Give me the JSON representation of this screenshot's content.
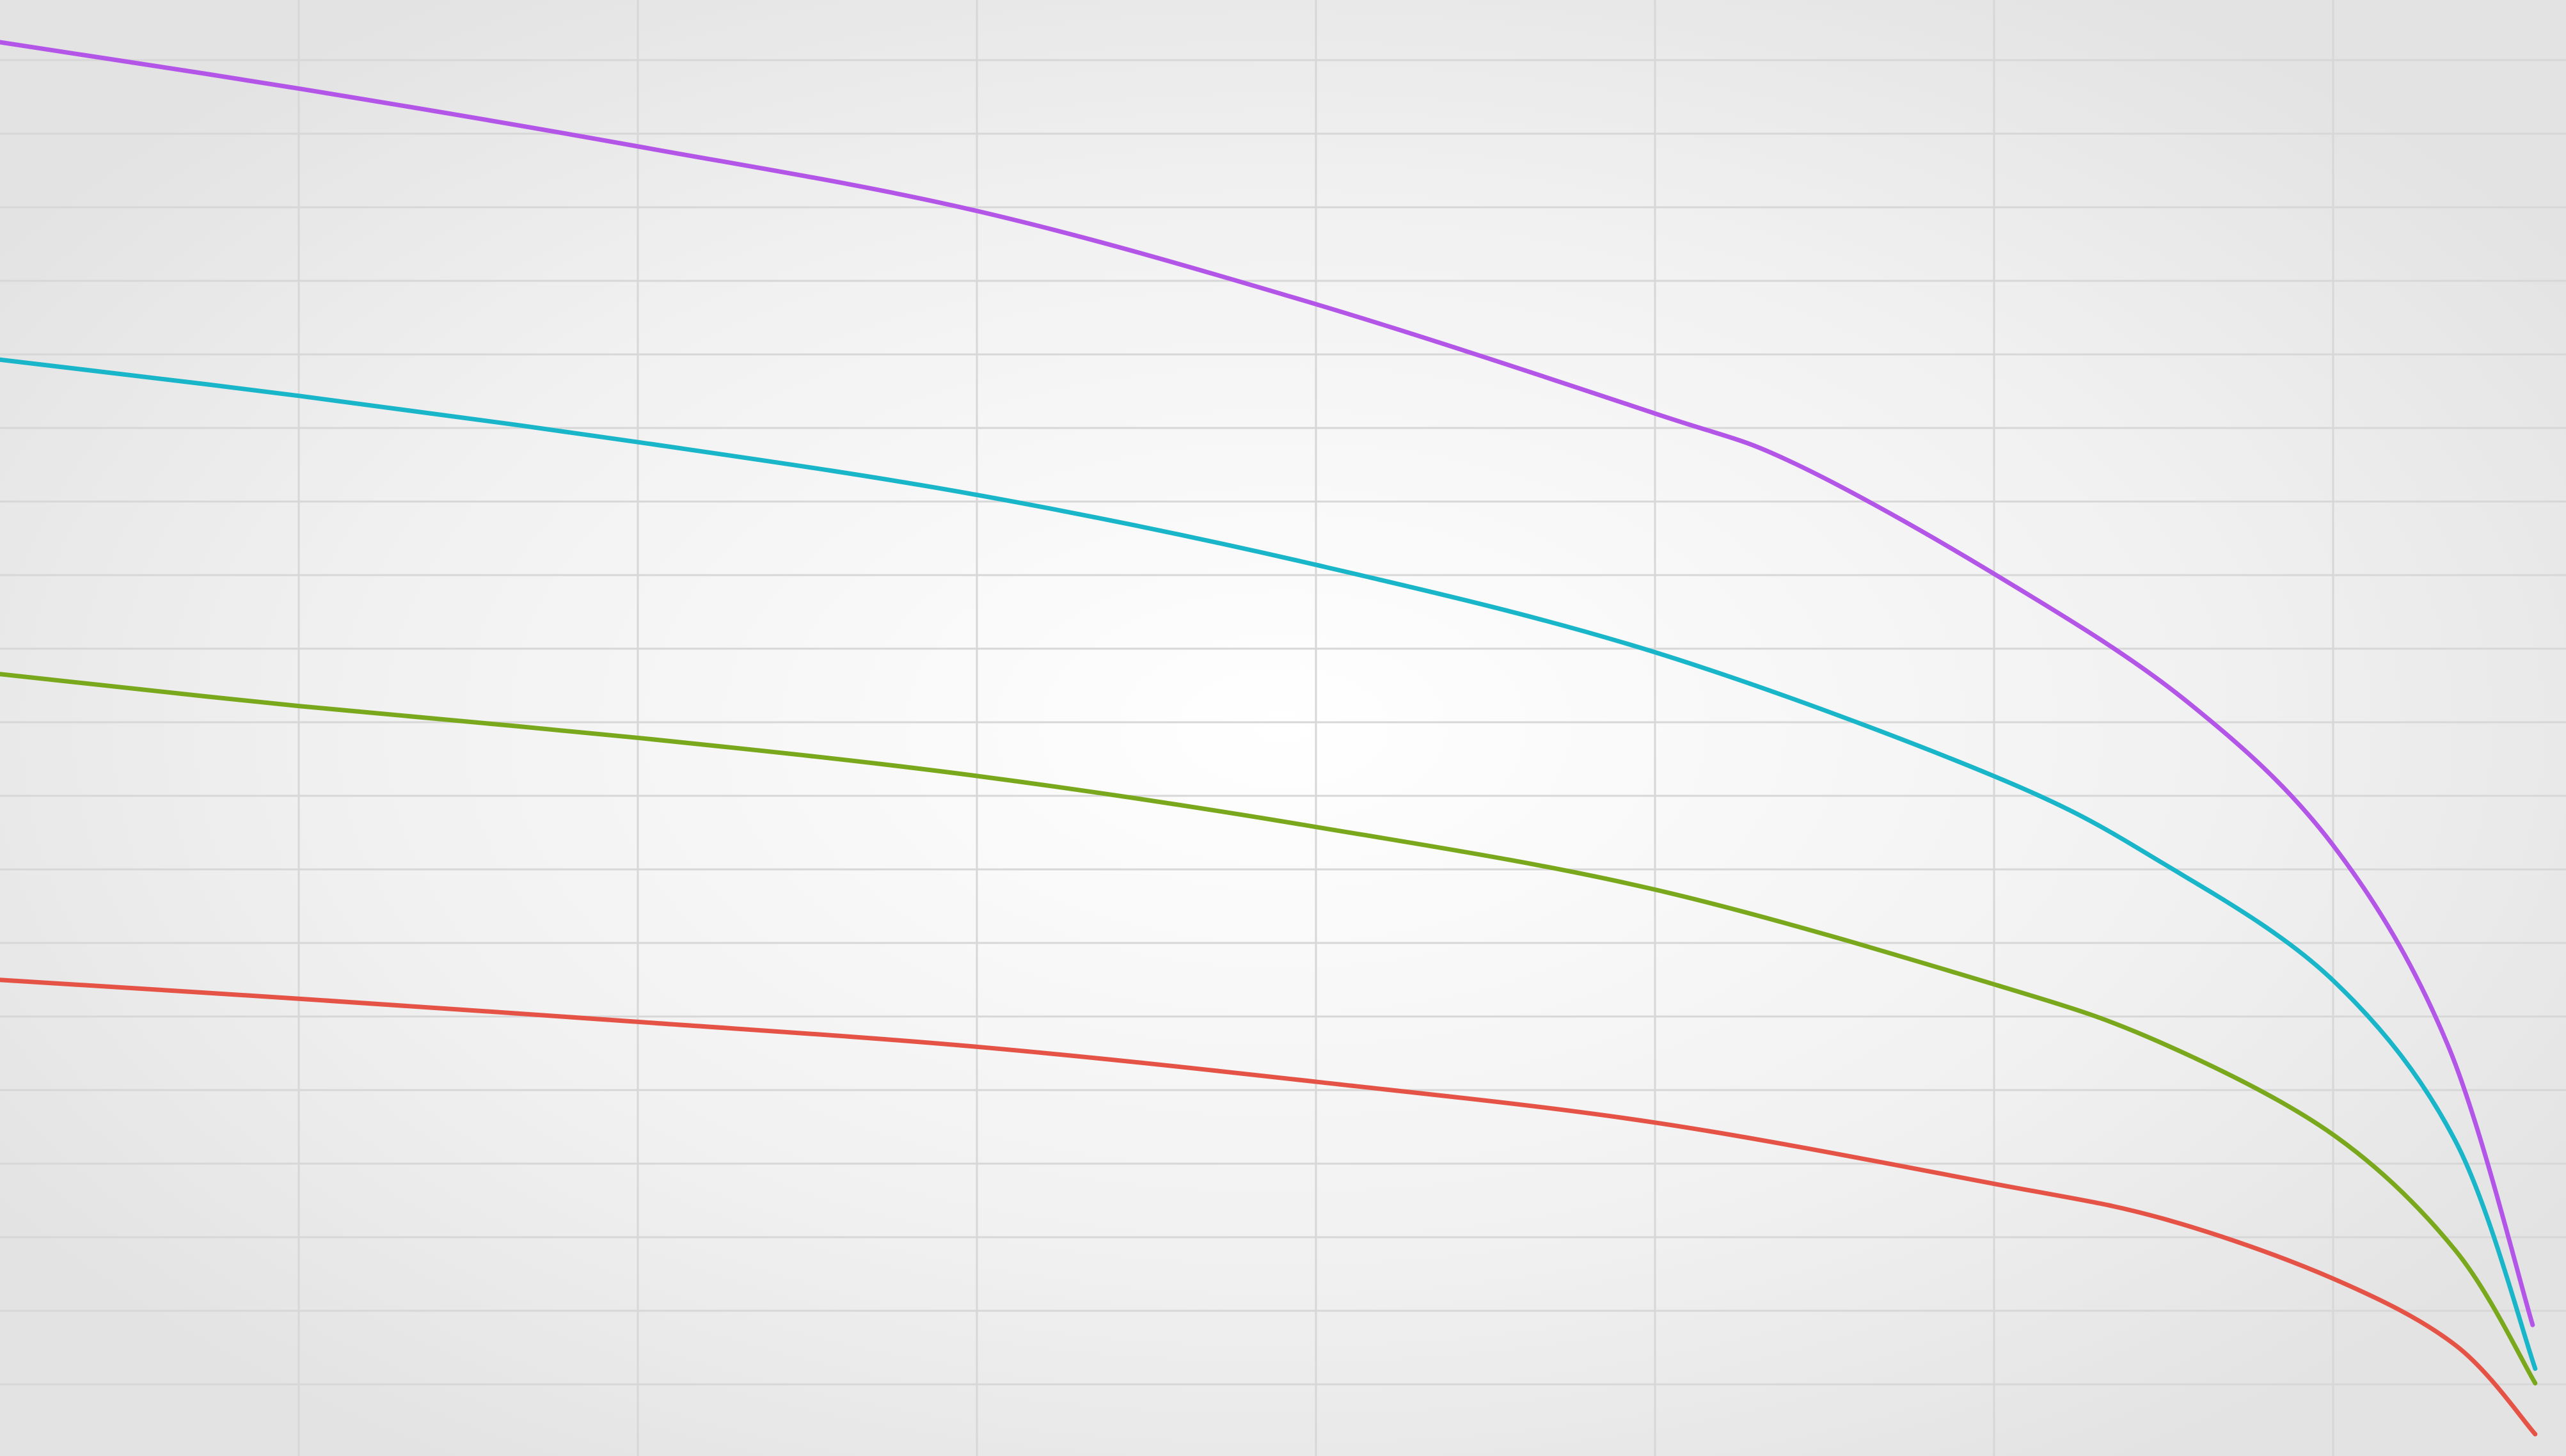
{
  "chart_data": {
    "type": "line",
    "title": "",
    "xlabel": "",
    "ylabel": "",
    "grid": true,
    "legend": "none",
    "xlim": [
      0,
      1
    ],
    "ylim": [
      0,
      1
    ],
    "background": "#e6e6e6",
    "grid_color": "#d7d7d7",
    "series": [
      {
        "color": "#b356e8",
        "points": [
          [
            0.0,
            0.971
          ],
          [
            0.117,
            0.939
          ],
          [
            0.25,
            0.899
          ],
          [
            0.381,
            0.855
          ],
          [
            0.513,
            0.791
          ],
          [
            0.645,
            0.716
          ],
          [
            0.699,
            0.682
          ],
          [
            0.777,
            0.606
          ],
          [
            0.851,
            0.52
          ],
          [
            0.909,
            0.42
          ],
          [
            0.954,
            0.282
          ],
          [
            0.987,
            0.09
          ]
        ]
      },
      {
        "color": "#19b5c9",
        "points": [
          [
            0.0,
            0.753
          ],
          [
            0.117,
            0.728
          ],
          [
            0.25,
            0.696
          ],
          [
            0.381,
            0.66
          ],
          [
            0.513,
            0.612
          ],
          [
            0.645,
            0.552
          ],
          [
            0.777,
            0.467
          ],
          [
            0.843,
            0.407
          ],
          [
            0.909,
            0.327
          ],
          [
            0.957,
            0.216
          ],
          [
            0.988,
            0.06
          ]
        ]
      },
      {
        "color": "#7aa81c",
        "points": [
          [
            0.0,
            0.537
          ],
          [
            0.117,
            0.515
          ],
          [
            0.25,
            0.493
          ],
          [
            0.381,
            0.467
          ],
          [
            0.513,
            0.432
          ],
          [
            0.645,
            0.389
          ],
          [
            0.777,
            0.324
          ],
          [
            0.842,
            0.284
          ],
          [
            0.909,
            0.221
          ],
          [
            0.957,
            0.141
          ],
          [
            0.988,
            0.05
          ]
        ]
      },
      {
        "color": "#e55346",
        "points": [
          [
            0.0,
            0.327
          ],
          [
            0.117,
            0.314
          ],
          [
            0.25,
            0.298
          ],
          [
            0.381,
            0.281
          ],
          [
            0.513,
            0.257
          ],
          [
            0.645,
            0.229
          ],
          [
            0.777,
            0.187
          ],
          [
            0.843,
            0.163
          ],
          [
            0.909,
            0.122
          ],
          [
            0.957,
            0.076
          ],
          [
            0.988,
            0.015
          ]
        ]
      }
    ]
  }
}
